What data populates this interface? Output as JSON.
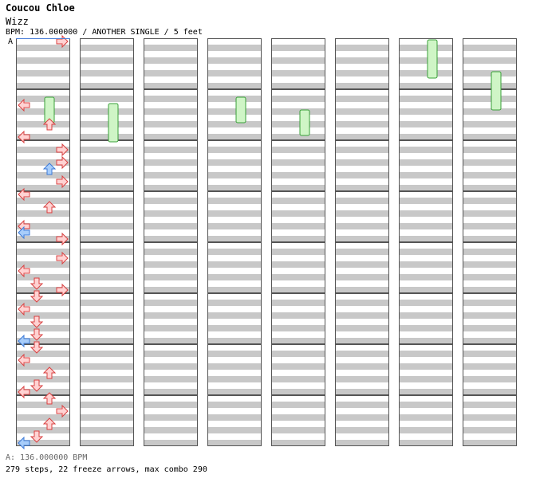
{
  "song": {
    "title": "Coucou Chloe",
    "subtitle": "Wizz",
    "info": "BPM: 136.000000 / ANOTHER SINGLE / 5 feet"
  },
  "markers": {
    "bpm_label": "A"
  },
  "footer": {
    "bpm_line": "A: 136.000000 BPM",
    "stats_line": "279 steps, 22 freeze arrows, max combo 290"
  },
  "colors": {
    "stripe": "#c8c8c8",
    "background": "#ffffff",
    "measure_border": "#555555",
    "arrow_red_fill": "#ffd2d2",
    "arrow_red_stroke": "#d84040",
    "arrow_blue_fill": "#a8cdfa",
    "arrow_blue_stroke": "#3c7ad8",
    "freeze_fill": "#cff5c6",
    "freeze_stroke": "#38a038"
  },
  "icons": {
    "arrow_left": "left-arrow-icon",
    "arrow_down": "down-arrow-icon",
    "arrow_up": "up-arrow-icon",
    "arrow_right": "right-arrow-icon",
    "freeze": "freeze-arrow-icon"
  },
  "chart": {
    "total_measures": 64,
    "notes": [
      {
        "m": 0,
        "b": 0,
        "dir": "R",
        "c": "r"
      },
      {
        "m": 1,
        "b": 2,
        "dir": "L",
        "c": "r"
      },
      {
        "m": 1,
        "b": 5,
        "dir": "U",
        "c": "r"
      },
      {
        "m": 1,
        "b": 7,
        "dir": "L",
        "c": "r"
      },
      {
        "m": 2,
        "b": 1,
        "dir": "R",
        "c": "r"
      },
      {
        "m": 2,
        "b": 3,
        "dir": "R",
        "c": "r"
      },
      {
        "m": 2,
        "b": 4,
        "dir": "U",
        "c": "b"
      },
      {
        "m": 2,
        "b": 6,
        "dir": "R",
        "c": "r"
      },
      {
        "m": 3,
        "b": 0,
        "dir": "L",
        "c": "r"
      },
      {
        "m": 3,
        "b": 2,
        "dir": "U",
        "c": "r"
      },
      {
        "m": 3,
        "b": 5,
        "dir": "L",
        "c": "r"
      },
      {
        "m": 3,
        "b": 6,
        "dir": "L",
        "c": "b"
      },
      {
        "m": 3,
        "b": 7,
        "dir": "R",
        "c": "r"
      },
      {
        "m": 4,
        "b": 2,
        "dir": "R",
        "c": "r"
      },
      {
        "m": 4,
        "b": 4,
        "dir": "L",
        "c": "r"
      },
      {
        "m": 4,
        "b": 6,
        "dir": "D",
        "c": "r"
      },
      {
        "m": 4,
        "b": 7,
        "dir": "R",
        "c": "r"
      },
      {
        "m": 5,
        "b": 0,
        "dir": "D",
        "c": "r"
      },
      {
        "m": 5,
        "b": 2,
        "dir": "L",
        "c": "r"
      },
      {
        "m": 5,
        "b": 4,
        "dir": "D",
        "c": "r"
      },
      {
        "m": 5,
        "b": 6,
        "dir": "D",
        "c": "r"
      },
      {
        "m": 5,
        "b": 7,
        "dir": "L",
        "c": "b"
      },
      {
        "m": 6,
        "b": 0,
        "dir": "D",
        "c": "r"
      },
      {
        "m": 6,
        "b": 2,
        "dir": "L",
        "c": "r"
      },
      {
        "m": 6,
        "b": 4,
        "dir": "U",
        "c": "r"
      },
      {
        "m": 6,
        "b": 6,
        "dir": "D",
        "c": "r"
      },
      {
        "m": 6,
        "b": 7,
        "dir": "L",
        "c": "r"
      },
      {
        "m": 7,
        "b": 0,
        "dir": "U",
        "c": "r"
      },
      {
        "m": 7,
        "b": 2,
        "dir": "R",
        "c": "r"
      },
      {
        "m": 7,
        "b": 4,
        "dir": "U",
        "c": "r"
      },
      {
        "m": 7,
        "b": 6,
        "dir": "D",
        "c": "r"
      },
      {
        "m": 7,
        "b": 7,
        "dir": "L",
        "c": "b"
      }
    ],
    "freezes": [
      {
        "m": 1,
        "b": 1,
        "len": 2
      },
      {
        "m": 9,
        "b": 2,
        "len": 3
      },
      {
        "m": 25,
        "b": 1,
        "len": 2
      },
      {
        "m": 33,
        "b": 3,
        "len": 2
      },
      {
        "m": 48,
        "b": 0,
        "len": 3
      },
      {
        "m": 56,
        "b": 5,
        "len": 3
      }
    ]
  }
}
